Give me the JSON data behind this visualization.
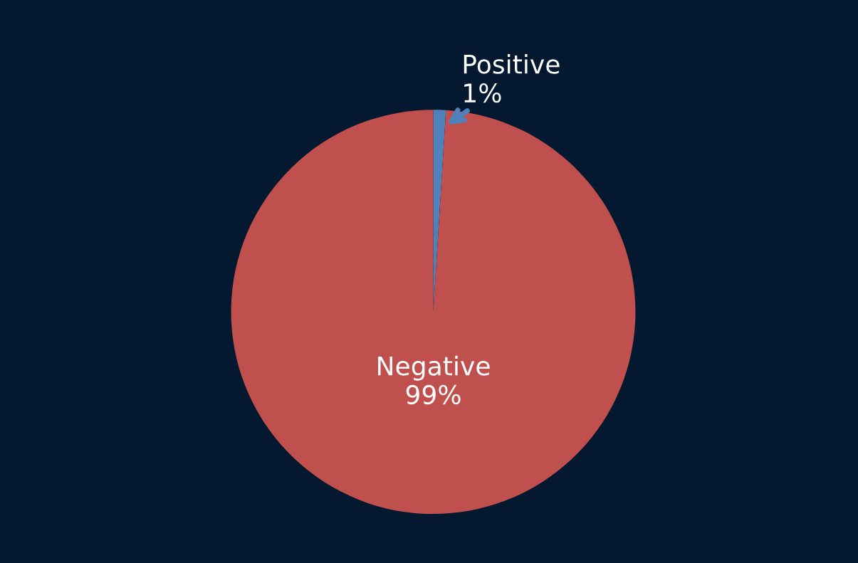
{
  "chart_data": {
    "type": "pie",
    "categories": [
      "Positive",
      "Negative"
    ],
    "values": [
      1,
      99
    ],
    "value_labels": [
      "1%",
      "99%"
    ],
    "colors": [
      "#4f81bd",
      "#c0504d"
    ],
    "legend": false
  }
}
